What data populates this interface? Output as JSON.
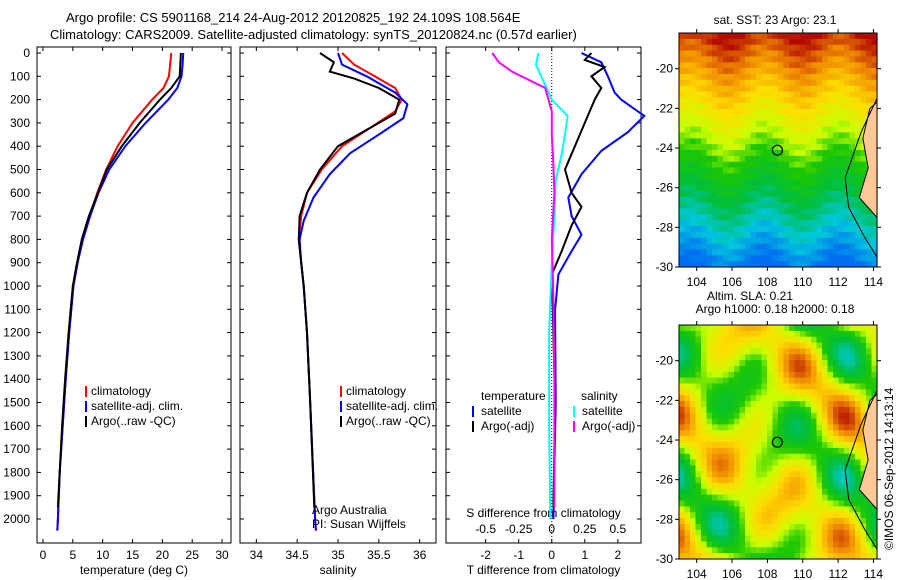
{
  "title_line1": "Argo profile: CS 5901168_214 24-Aug-2012 20120825_192 24.109S 108.564E",
  "title_line2": "Climatology: CARS2009. Satellite-adjusted climatology: synTS_20120824.nc (0.57d earlier)",
  "copyright": "©IMOS 06-Sep-2012 14:13:14",
  "colors": {
    "climatology": "#ff0000",
    "satellite": "#0000ff",
    "argo": "#000000",
    "s_satellite": "#00ffff",
    "s_argo": "#ff00ff"
  },
  "chart_data": [
    {
      "type": "line",
      "id": "temperature",
      "xlabel": "temperature (deg C)",
      "xlim": [
        -1,
        31.5
      ],
      "ylim": [
        0,
        2050
      ],
      "xticks": [
        "0",
        "5",
        "10",
        "15",
        "20",
        "25",
        "30"
      ],
      "xtick_values": [
        0,
        5,
        10,
        15,
        20,
        25,
        30
      ],
      "yticks": [
        "0",
        "100",
        "200",
        "300",
        "400",
        "500",
        "600",
        "700",
        "800",
        "900",
        "1000",
        "1100",
        "1200",
        "1300",
        "1400",
        "1500",
        "1600",
        "1700",
        "1800",
        "1900",
        "2000"
      ],
      "legend": [
        "climatology",
        "satellite-adj. clim.",
        "Argo(..raw -QC)"
      ],
      "series": [
        {
          "name": "climatology",
          "color": "#ff0000",
          "points": [
            [
              21.5,
              0
            ],
            [
              21.3,
              50
            ],
            [
              21.1,
              100
            ],
            [
              20.2,
              150
            ],
            [
              18.3,
              200
            ],
            [
              15,
              300
            ],
            [
              12.5,
              400
            ],
            [
              10.6,
              500
            ],
            [
              9.1,
              600
            ],
            [
              7.8,
              700
            ],
            [
              6.6,
              800
            ],
            [
              5.8,
              900
            ],
            [
              5.1,
              1000
            ],
            [
              4.4,
              1200
            ],
            [
              3.8,
              1400
            ],
            [
              3.3,
              1600
            ],
            [
              2.8,
              1800
            ],
            [
              2.5,
              2000
            ],
            [
              2.4,
              2050
            ]
          ]
        },
        {
          "name": "satellite-adj. clim.",
          "color": "#0000ff",
          "points": [
            [
              23.5,
              0
            ],
            [
              23.4,
              50
            ],
            [
              23.2,
              100
            ],
            [
              22.5,
              150
            ],
            [
              21,
              200
            ],
            [
              17.2,
              300
            ],
            [
              13.8,
              400
            ],
            [
              11.1,
              500
            ],
            [
              9.3,
              600
            ],
            [
              7.9,
              700
            ],
            [
              6.7,
              800
            ],
            [
              5.8,
              900
            ],
            [
              5.1,
              1000
            ],
            [
              4.4,
              1200
            ],
            [
              3.8,
              1400
            ],
            [
              3.3,
              1600
            ],
            [
              2.8,
              1800
            ],
            [
              2.5,
              2000
            ],
            [
              2.4,
              2050
            ]
          ]
        },
        {
          "name": "Argo(..raw -QC)",
          "color": "#000000",
          "points": [
            [
              23.1,
              0
            ],
            [
              23,
              50
            ],
            [
              22.9,
              100
            ],
            [
              21.5,
              150
            ],
            [
              19.6,
              200
            ],
            [
              16.2,
              300
            ],
            [
              13.2,
              400
            ],
            [
              10.7,
              500
            ],
            [
              9.2,
              600
            ],
            [
              7.7,
              700
            ],
            [
              6.5,
              800
            ],
            [
              5.7,
              900
            ],
            [
              5,
              1000
            ],
            [
              4.3,
              1200
            ],
            [
              3.7,
              1400
            ],
            [
              3.2,
              1600
            ],
            [
              2.8,
              1800
            ],
            [
              2.5,
              1950
            ]
          ]
        }
      ]
    },
    {
      "type": "line",
      "id": "salinity",
      "xlabel": "salinity",
      "xlim": [
        33.8,
        36.2
      ],
      "ylim": [
        0,
        2050
      ],
      "xticks": [
        "34",
        "34.5",
        "35",
        "35.5",
        "36"
      ],
      "xtick_values": [
        34,
        34.5,
        35,
        35.5,
        36
      ],
      "legend": [
        "climatology",
        "satellite-adj. clim.",
        "Argo(..raw -QC)"
      ],
      "annotation": [
        "Argo Australia",
        "PI: Susan Wijffels"
      ],
      "series": [
        {
          "name": "climatology",
          "color": "#ff0000",
          "points": [
            [
              35.05,
              0
            ],
            [
              35.2,
              50
            ],
            [
              35.45,
              100
            ],
            [
              35.7,
              150
            ],
            [
              35.78,
              200
            ],
            [
              35.7,
              250
            ],
            [
              35.4,
              320
            ],
            [
              35.05,
              400
            ],
            [
              34.8,
              500
            ],
            [
              34.62,
              600
            ],
            [
              34.55,
              700
            ],
            [
              34.52,
              800
            ],
            [
              34.55,
              900
            ],
            [
              34.58,
              1000
            ],
            [
              34.62,
              1200
            ],
            [
              34.66,
              1500
            ],
            [
              34.72,
              2000
            ],
            [
              34.73,
              2050
            ]
          ]
        },
        {
          "name": "satellite-adj. clim.",
          "color": "#0000ff",
          "points": [
            [
              35.0,
              0
            ],
            [
              35.05,
              50
            ],
            [
              35.35,
              100
            ],
            [
              35.7,
              170
            ],
            [
              35.85,
              220
            ],
            [
              35.8,
              280
            ],
            [
              35.5,
              350
            ],
            [
              35.15,
              430
            ],
            [
              34.9,
              520
            ],
            [
              34.7,
              620
            ],
            [
              34.58,
              720
            ],
            [
              34.53,
              800
            ],
            [
              34.55,
              900
            ],
            [
              34.58,
              1000
            ],
            [
              34.62,
              1200
            ],
            [
              34.66,
              1500
            ],
            [
              34.72,
              2000
            ],
            [
              34.73,
              2050
            ]
          ]
        },
        {
          "name": "Argo(..raw -QC)",
          "color": "#000000",
          "points": [
            [
              34.78,
              0
            ],
            [
              34.95,
              40
            ],
            [
              34.9,
              80
            ],
            [
              35.2,
              110
            ],
            [
              35.5,
              150
            ],
            [
              35.75,
              200
            ],
            [
              35.7,
              260
            ],
            [
              35.35,
              330
            ],
            [
              35.0,
              400
            ],
            [
              34.78,
              500
            ],
            [
              34.62,
              600
            ],
            [
              34.53,
              700
            ],
            [
              34.52,
              800
            ],
            [
              34.55,
              900
            ],
            [
              34.58,
              1000
            ],
            [
              34.62,
              1200
            ],
            [
              34.66,
              1500
            ],
            [
              34.71,
              1950
            ]
          ]
        }
      ]
    },
    {
      "type": "line",
      "id": "difference",
      "xlabel": "T difference from climatology",
      "xlabel2": "S difference from climatology",
      "xlim": [
        -3.2,
        2.7
      ],
      "ylim": [
        0,
        2050
      ],
      "xticks": [
        "-2",
        "-1",
        "0",
        "1",
        "2"
      ],
      "xtick_values": [
        -2,
        -1,
        0,
        1,
        2
      ],
      "xticks2": [
        "-0.5",
        "-0.25",
        "0",
        "0.25",
        "0.5"
      ],
      "xtick2_values": [
        -0.5,
        -0.25,
        0,
        0.25,
        0.5
      ],
      "legend_temperature": {
        "heading": "temperature",
        "items": [
          "satellite",
          "Argo(-adj)"
        ]
      },
      "legend_salinity": {
        "heading": "salinity",
        "items": [
          "satellite",
          "Argo(-adj)"
        ]
      },
      "series": [
        {
          "name": "T satellite",
          "color": "#0000ff",
          "scale": 1,
          "points": [
            [
              0.9,
              0
            ],
            [
              1.5,
              40
            ],
            [
              1.7,
              100
            ],
            [
              1.9,
              170
            ],
            [
              2.1,
              200
            ],
            [
              2.8,
              270
            ],
            [
              2.3,
              340
            ],
            [
              1.5,
              420
            ],
            [
              0.9,
              520
            ],
            [
              0.5,
              620
            ],
            [
              0.6,
              700
            ],
            [
              0.9,
              780
            ],
            [
              0.6,
              850
            ],
            [
              0.2,
              950
            ],
            [
              0.1,
              1100
            ],
            [
              0.12,
              1500
            ],
            [
              0.05,
              2000
            ]
          ]
        },
        {
          "name": "T Argo(-adj)",
          "color": "#000000",
          "scale": 1,
          "points": [
            [
              1.2,
              0
            ],
            [
              1.0,
              30
            ],
            [
              1.6,
              60
            ],
            [
              1.2,
              100
            ],
            [
              1.5,
              150
            ],
            [
              1.3,
              200
            ],
            [
              1.0,
              300
            ],
            [
              0.7,
              400
            ],
            [
              0.4,
              500
            ],
            [
              0.6,
              600
            ],
            [
              0.9,
              660
            ],
            [
              0.6,
              740
            ],
            [
              0.3,
              850
            ],
            [
              0,
              950
            ],
            [
              0.05,
              1200
            ],
            [
              0.1,
              1500
            ],
            [
              0.05,
              1950
            ]
          ]
        },
        {
          "name": "S satellite",
          "color": "#00ffff",
          "scale": 0.25,
          "points": [
            [
              -0.1,
              0
            ],
            [
              -0.12,
              50
            ],
            [
              -0.08,
              100
            ],
            [
              0,
              200
            ],
            [
              0.12,
              270
            ],
            [
              0.1,
              350
            ],
            [
              0.08,
              420
            ],
            [
              0.03,
              550
            ],
            [
              0.02,
              700
            ],
            [
              0,
              900
            ],
            [
              -0.02,
              1200
            ],
            [
              -0.02,
              1600
            ],
            [
              -0.01,
              2000
            ]
          ]
        },
        {
          "name": "S Argo(-adj)",
          "color": "#ff00ff",
          "scale": 0.25,
          "points": [
            [
              -0.45,
              0
            ],
            [
              -0.4,
              40
            ],
            [
              -0.3,
              80
            ],
            [
              -0.05,
              150
            ],
            [
              0.0,
              250
            ],
            [
              0.0,
              350
            ],
            [
              0.01,
              450
            ],
            [
              0.02,
              600
            ],
            [
              0.0,
              800
            ],
            [
              0.01,
              1000
            ],
            [
              0.02,
              1400
            ],
            [
              0.02,
              1950
            ]
          ]
        }
      ]
    },
    {
      "type": "heatmap",
      "id": "sst-map",
      "title": "sat. SST: 23 Argo: 23.1",
      "xticks": [
        "104",
        "106",
        "108",
        "110",
        "112",
        "114"
      ],
      "xtick_values": [
        104,
        106,
        108,
        110,
        112,
        114
      ],
      "yticks": [
        "-20",
        "-22",
        "-24",
        "-26",
        "-28",
        "-30"
      ],
      "ytick_values": [
        -20,
        -22,
        -24,
        -26,
        -28,
        -30
      ],
      "xlim": [
        103,
        114.2
      ],
      "ylim": [
        -30,
        -18.2
      ],
      "marker": [
        108.564,
        -24.109
      ]
    },
    {
      "type": "heatmap",
      "id": "sla-map",
      "title_line1": "Altim. SLA: 0.21",
      "title_line2": "Argo h1000: 0.18 h2000: 0.18",
      "xticks": [
        "104",
        "106",
        "108",
        "110",
        "112",
        "114"
      ],
      "xtick_values": [
        104,
        106,
        108,
        110,
        112,
        114
      ],
      "yticks": [
        "-20",
        "-22",
        "-24",
        "-26",
        "-28",
        "-30"
      ],
      "ytick_values": [
        -20,
        -22,
        -24,
        -26,
        -28,
        -30
      ],
      "xlim": [
        103,
        114.2
      ],
      "ylim": [
        -30,
        -18.2
      ],
      "marker": [
        108.564,
        -24.109
      ]
    }
  ]
}
